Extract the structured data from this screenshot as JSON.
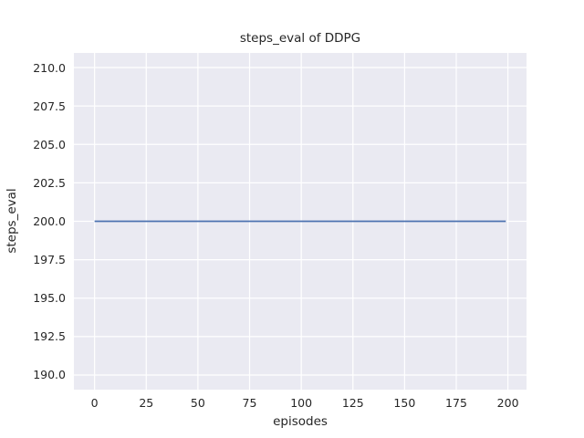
{
  "chart_data": {
    "type": "line",
    "title": "steps_eval of DDPG",
    "xlabel": "episodes",
    "ylabel": "steps_eval",
    "x_tick_values": [
      0,
      25,
      50,
      75,
      100,
      125,
      150,
      175,
      200
    ],
    "x_tick_labels": [
      "0",
      "25",
      "50",
      "75",
      "100",
      "125",
      "150",
      "175",
      "200"
    ],
    "y_tick_values": [
      190.0,
      192.5,
      195.0,
      197.5,
      200.0,
      202.5,
      205.0,
      207.5,
      210.0
    ],
    "y_tick_labels": [
      "190.0",
      "192.5",
      "195.0",
      "197.5",
      "200.0",
      "202.5",
      "205.0",
      "207.5",
      "210.0"
    ],
    "xlim": [
      -10,
      209
    ],
    "ylim": [
      189.05,
      210.95
    ],
    "grid": true,
    "legend": "none",
    "series": [
      {
        "name": "steps_eval",
        "color": "#4c72b0",
        "line_width": 1.8,
        "points": [
          [
            0,
            200
          ],
          [
            199,
            200
          ]
        ]
      }
    ],
    "colors": {
      "figure_bg": "#ffffff",
      "plot_bg": "#eaeaf2",
      "grid": "#ffffff",
      "text": "#262626"
    }
  }
}
